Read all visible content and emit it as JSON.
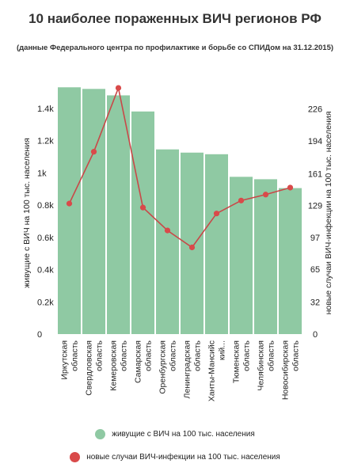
{
  "chart_data": {
    "type": "bar+line",
    "title": "10 наиболее пораженных ВИЧ регионов РФ",
    "subtitle": "(данные Федерального центра по профилактике и борьбе со СПИДом на 31.12.2015)",
    "categories": [
      [
        "Иркутская",
        "область"
      ],
      [
        "Свердловская",
        "область"
      ],
      [
        "Кемеровская",
        "область"
      ],
      [
        "Самарская",
        "область"
      ],
      [
        "Оренбургская",
        "область"
      ],
      [
        "Ленинградская",
        "область"
      ],
      [
        "Ханты-Мансийс",
        "кий..."
      ],
      [
        "Тюменская",
        "область"
      ],
      [
        "Челябинская",
        "область"
      ],
      [
        "Новосибирская",
        "область"
      ]
    ],
    "series": [
      {
        "name": "живущие с ВИЧ на 100 тыс. населения",
        "type": "bar",
        "color": "#8fc9a3",
        "axis": "left",
        "values": [
          1530,
          1520,
          1480,
          1380,
          1145,
          1125,
          1115,
          975,
          960,
          905
        ]
      },
      {
        "name": "новые случаи ВИЧ-инфекции на 100 тыс. населения",
        "type": "line",
        "color": "#d94a4a",
        "line_color": "#c94848",
        "axis": "right",
        "values": [
          131,
          183,
          247,
          127,
          104,
          87,
          121,
          134,
          140,
          147
        ]
      }
    ],
    "left_axis": {
      "label": "живущие с ВИЧ на 100 тыс. населения",
      "ticks": [
        0,
        200,
        400,
        600,
        800,
        1000,
        1200,
        1400
      ],
      "tick_labels": [
        "0",
        "0.2k",
        "0.4k",
        "0.6k",
        "0.8k",
        "1k",
        "1.2k",
        "1.4k"
      ],
      "ylim": [
        0,
        1600
      ]
    },
    "right_axis": {
      "label": "новые случаи ВИЧ-инфекции на 100 тыс. населения",
      "ticks": [
        0,
        32,
        65,
        97,
        129,
        161,
        194,
        226
      ],
      "tick_labels": [
        "0",
        "32",
        "65",
        "97",
        "129",
        "161",
        "194",
        "226"
      ],
      "ylim": [
        0,
        259
      ]
    },
    "legend_position": "bottom",
    "grid": false
  }
}
